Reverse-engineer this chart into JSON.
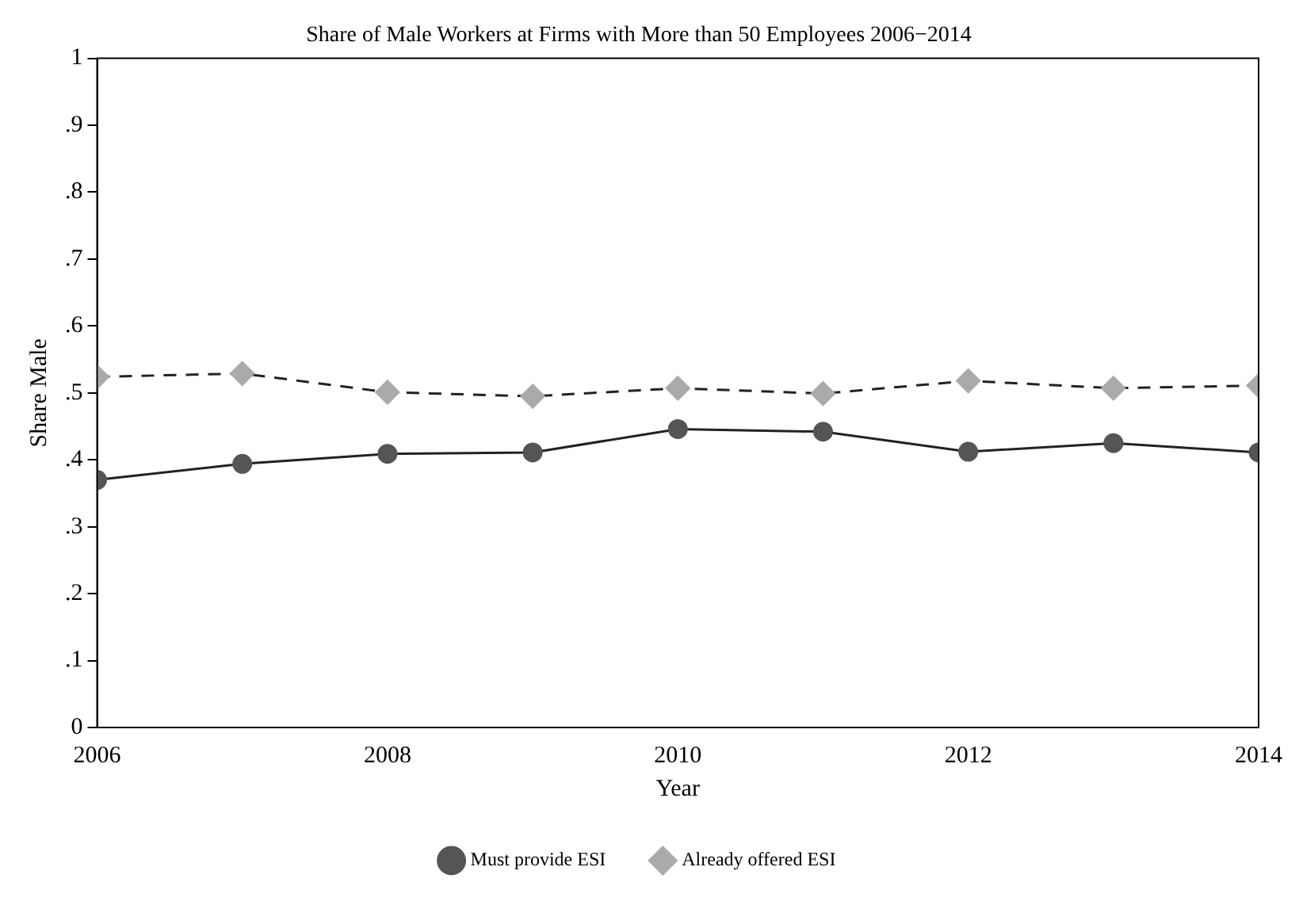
{
  "chart_data": {
    "type": "line",
    "title": "Share of Male Workers at Firms with More than 50 Employees 2006−2014",
    "xlabel": "Year",
    "ylabel": "Share Male",
    "x": [
      2006,
      2007,
      2008,
      2009,
      2010,
      2011,
      2012,
      2013,
      2014
    ],
    "xlim": [
      2006,
      2014
    ],
    "xticks": [
      2006,
      2008,
      2010,
      2012,
      2014
    ],
    "ylim": [
      0,
      1
    ],
    "yticks": [
      {
        "value": 0,
        "label": "0"
      },
      {
        "value": 0.1,
        "label": ".1"
      },
      {
        "value": 0.2,
        "label": ".2"
      },
      {
        "value": 0.3,
        "label": ".3"
      },
      {
        "value": 0.4,
        "label": ".4"
      },
      {
        "value": 0.5,
        "label": ".5"
      },
      {
        "value": 0.6,
        "label": ".6"
      },
      {
        "value": 0.7,
        "label": ".7"
      },
      {
        "value": 0.8,
        "label": ".8"
      },
      {
        "value": 0.9,
        "label": ".9"
      },
      {
        "value": 1,
        "label": "1"
      }
    ],
    "grid": false,
    "legend": "bottom",
    "series": [
      {
        "name": "Must provide ESI",
        "color": "#555555",
        "marker": "circle",
        "line_style": "solid",
        "values": [
          0.37,
          0.394,
          0.409,
          0.411,
          0.446,
          0.442,
          0.412,
          0.425,
          0.411
        ]
      },
      {
        "name": "Already offered ESI",
        "color": "#aaaaaa",
        "marker": "diamond",
        "line_style": "dashed",
        "values": [
          0.524,
          0.529,
          0.501,
          0.495,
          0.507,
          0.499,
          0.518,
          0.507,
          0.511
        ]
      }
    ]
  }
}
